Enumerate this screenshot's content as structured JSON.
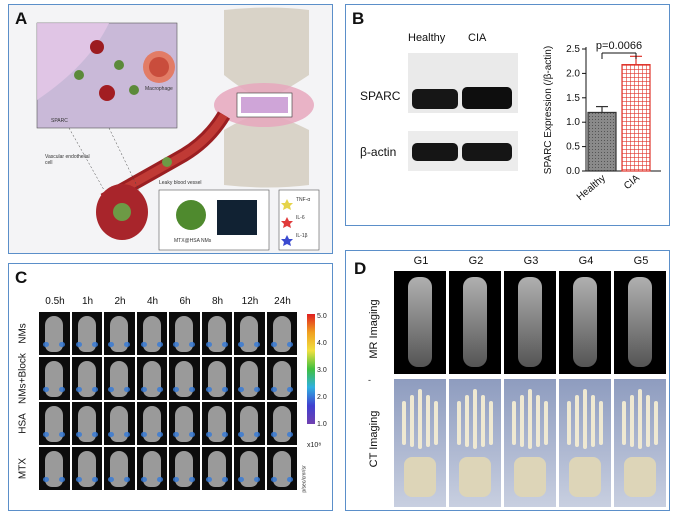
{
  "panels": {
    "a": "A",
    "b": "B",
    "c": "C",
    "d": "D"
  },
  "panel_a": {
    "macrophage": "Macrophage",
    "sparc": "SPARC",
    "vascular": "Vascular endothelial cell",
    "leaky": "Leaky blood vessel",
    "nms": "MTX@HSA NMs",
    "legend": [
      "TNF-α",
      "IL-6",
      "IL-1β"
    ]
  },
  "panel_b": {
    "lanes": [
      "Healthy",
      "CIA"
    ],
    "rows": [
      "SPARC",
      "β-actin"
    ]
  },
  "chart_data": {
    "type": "bar",
    "categories": [
      "Healthy",
      "CIA"
    ],
    "values": [
      1.2,
      2.18
    ],
    "errors": [
      0.12,
      0.17
    ],
    "ylabel": "SPARC Expression (/β-actin)",
    "ylim": [
      0,
      2.5
    ],
    "yticks": [
      "0.0",
      "0.5",
      "1.0",
      "1.5",
      "2.0",
      "2.5"
    ],
    "annotation": "p=0.0066",
    "colors": [
      "#7a7a7a",
      "#e0342b"
    ]
  },
  "panel_c": {
    "times": [
      "0.5h",
      "1h",
      "2h",
      "4h",
      "6h",
      "8h",
      "12h",
      "24h"
    ],
    "rows": [
      "NMs",
      "NMs+Block",
      "HSA",
      "MTX"
    ],
    "colorbar_ticks": [
      "5.0",
      "4.0",
      "3.0",
      "2.0",
      "1.0"
    ],
    "colorbar_exp": "x10⁸",
    "colorbar_unit": "p/sec/cm²/sr"
  },
  "panel_d": {
    "groups": [
      "G1",
      "G2",
      "G3",
      "G4",
      "G5"
    ],
    "rows": [
      "MR Imaging",
      "CT Imaging"
    ],
    "dash": "-"
  }
}
